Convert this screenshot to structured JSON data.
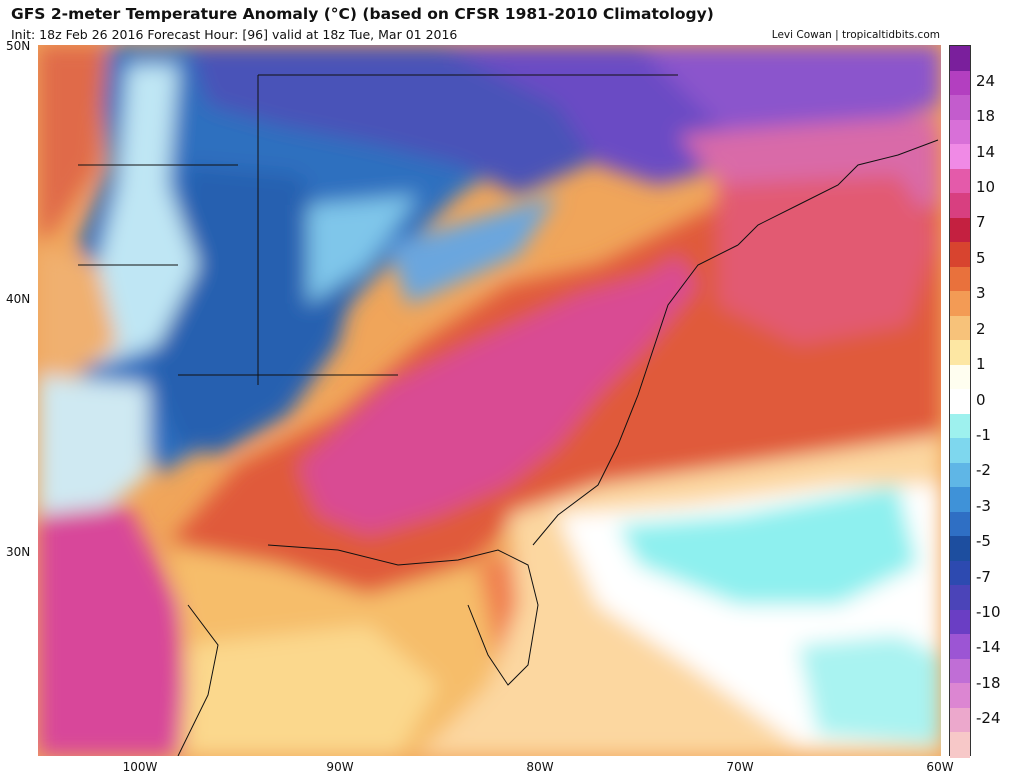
{
  "header": {
    "title": "GFS 2-meter Temperature Anomaly (°C) (based on CFSR 1981-2010 Climatology)",
    "subtitle": "Init: 18z Feb 26 2016   Forecast Hour: [96]   valid at 18z Tue, Mar 01 2016",
    "credit": "Levi Cowan | tropicaltidbits.com"
  },
  "axes": {
    "lat_labels": [
      "50N",
      "40N",
      "30N"
    ],
    "lon_labels": [
      "100W",
      "90W",
      "80W",
      "70W",
      "60W"
    ]
  },
  "colorbar": {
    "labels": [
      "24",
      "18",
      "14",
      "10",
      "7",
      "5",
      "3",
      "2",
      "1",
      "0",
      "-1",
      "-2",
      "-3",
      "-5",
      "-7",
      "-10",
      "-14",
      "-18",
      "-24"
    ],
    "colors": [
      "#7a1f9c",
      "#b33fc0",
      "#c35ccd",
      "#d870d8",
      "#f08ae6",
      "#e45aaa",
      "#d83f80",
      "#c42040",
      "#d8442f",
      "#e9713c",
      "#f39b55",
      "#f7c27a",
      "#fde7a3",
      "#fffef0",
      "#ffffff",
      "#9ef1ee",
      "#7ed7ee",
      "#5fb6e6",
      "#3f92d8",
      "#2f6fc4",
      "#1d4e9f",
      "#2d4ab0",
      "#4b44b8",
      "#6a3ec4",
      "#9c55d4",
      "#c06ed6",
      "#dc86d2",
      "#eca8cc",
      "#f7c8c8"
    ]
  },
  "colors": {
    "ocean_warm": "#fbd38a",
    "land_warm": "#d8433a",
    "hot_core": "#d94c93",
    "cold": "#2f6fbf",
    "very_cold": "#5a48b4",
    "near_zero": "#ffffff",
    "cyan": "#8ef0ef"
  }
}
